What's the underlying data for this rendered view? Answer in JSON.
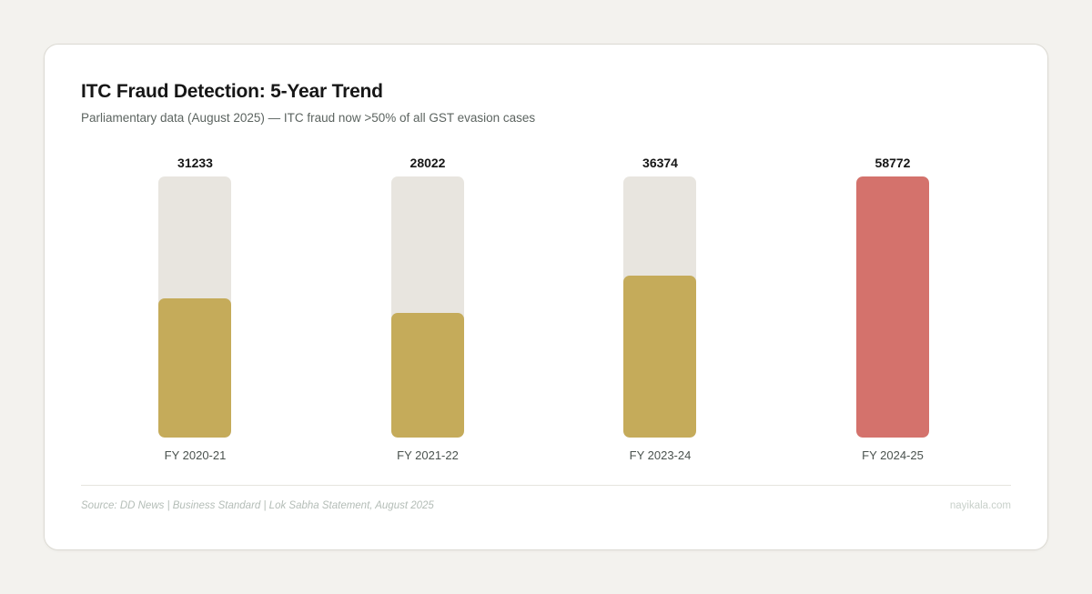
{
  "header": {
    "title": "ITC Fraud Detection: 5-Year Trend",
    "subtitle": "Parliamentary data (August 2025) — ITC fraud now >50% of all GST evasion cases"
  },
  "footer": {
    "source": "Source: DD News | Business Standard | Lok Sabha Statement, August 2025",
    "brand": "nayikala.com"
  },
  "colors": {
    "normal_bar": "#c5ab5a",
    "highlight_bar": "#d4726c",
    "track": "#e8e5df"
  },
  "chart_data": {
    "type": "bar",
    "title": "ITC Fraud Detection: 5-Year Trend",
    "subtitle": "Parliamentary data (August 2025) — ITC fraud now >50% of all GST evasion cases",
    "categories": [
      "FY 2020-21",
      "FY 2021-22",
      "FY 2023-24",
      "FY 2024-25"
    ],
    "values": [
      31233,
      28022,
      36374,
      58772
    ],
    "value_labels": [
      "31233",
      "28022",
      "36374",
      "58772"
    ],
    "highlight_index": 3,
    "xlabel": "",
    "ylabel": "",
    "ylim": [
      0,
      58772
    ],
    "grid": false,
    "legend": null
  }
}
